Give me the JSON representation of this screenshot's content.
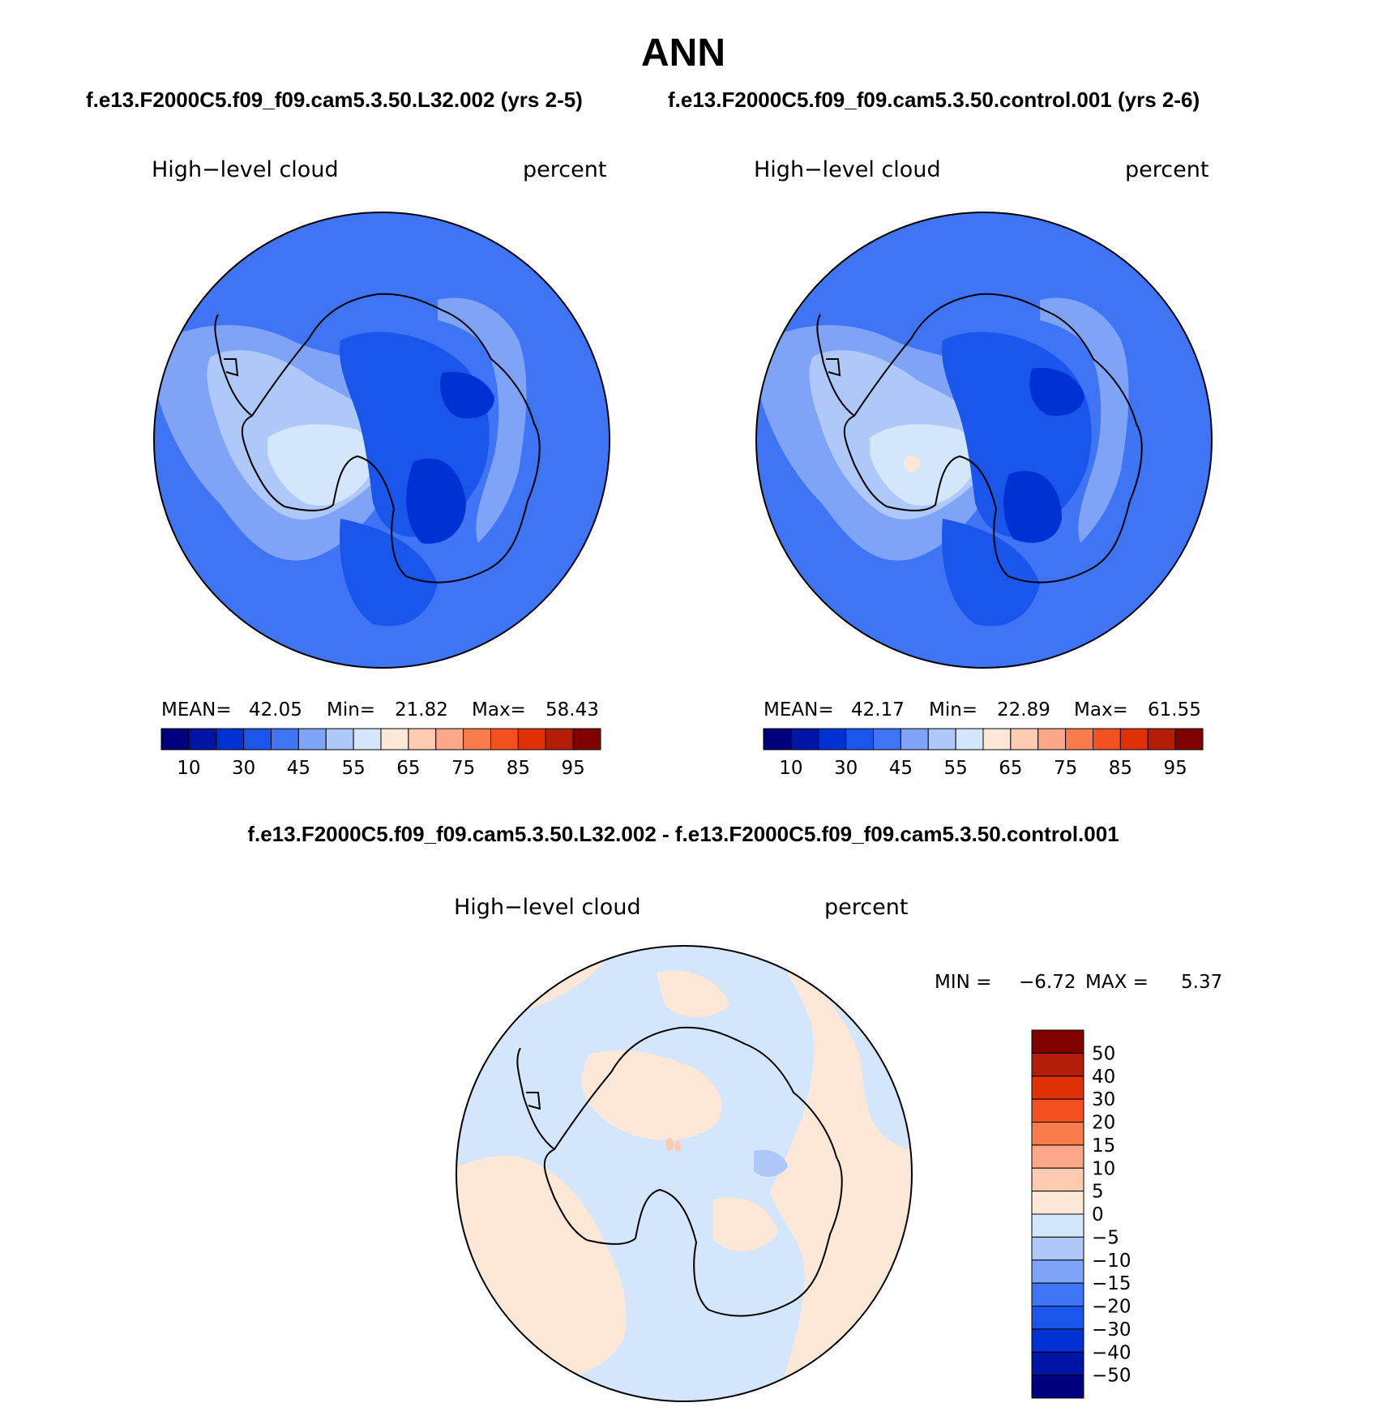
{
  "title": "ANN",
  "subtitle_left": "f.e13.F2000C5.f09_f09.cam5.3.50.L32.002 (yrs 2-5)",
  "subtitle_right": "f.e13.F2000C5.f09_f09.cam5.3.50.control.001 (yrs 2-6)",
  "diff_title": "f.e13.F2000C5.f09_f09.cam5.3.50.L32.002 - f.e13.F2000C5.f09_f09.cam5.3.50.control.001",
  "chart_data": [
    {
      "type": "heatmap",
      "projection": "south polar stereographic",
      "variable": "High−level cloud",
      "units": "percent",
      "stats": {
        "mean_label": "MEAN=",
        "mean": "42.05",
        "min_label": "Min=",
        "min": "21.82",
        "max_label": "Max=",
        "max": "58.43"
      },
      "colorbar": {
        "orientation": "horizontal",
        "levels": [
          10,
          20,
          30,
          40,
          45,
          50,
          55,
          60,
          65,
          70,
          75,
          80,
          85,
          90,
          95
        ],
        "tick_labels": [
          "10",
          "30",
          "45",
          "55",
          "65",
          "75",
          "85",
          "95"
        ],
        "colors": [
          "#00007f",
          "#0014a5",
          "#0032d3",
          "#1a55ec",
          "#3f75f5",
          "#7ea3f7",
          "#aec8f9",
          "#d4e6fb",
          "#fde8d8",
          "#fccbb1",
          "#fca789",
          "#fa7c4d",
          "#f5501f",
          "#e03006",
          "#b41d08",
          "#800000"
        ]
      }
    },
    {
      "type": "heatmap",
      "projection": "south polar stereographic",
      "variable": "High−level cloud",
      "units": "percent",
      "stats": {
        "mean_label": "MEAN=",
        "mean": "42.17",
        "min_label": "Min=",
        "min": "22.89",
        "max_label": "Max=",
        "max": "61.55"
      },
      "colorbar": {
        "orientation": "horizontal",
        "levels": [
          10,
          20,
          30,
          40,
          45,
          50,
          55,
          60,
          65,
          70,
          75,
          80,
          85,
          90,
          95
        ],
        "tick_labels": [
          "10",
          "30",
          "45",
          "55",
          "65",
          "75",
          "85",
          "95"
        ],
        "colors": [
          "#00007f",
          "#0014a5",
          "#0032d3",
          "#1a55ec",
          "#3f75f5",
          "#7ea3f7",
          "#aec8f9",
          "#d4e6fb",
          "#fde8d8",
          "#fccbb1",
          "#fca789",
          "#fa7c4d",
          "#f5501f",
          "#e03006",
          "#b41d08",
          "#800000"
        ]
      }
    },
    {
      "type": "heatmap",
      "projection": "south polar stereographic",
      "variable": "High−level cloud",
      "units": "percent",
      "stats": {
        "min_label": "MIN =",
        "min": "−6.72",
        "max_label": "MAX =",
        "max": "5.37"
      },
      "colorbar": {
        "orientation": "vertical",
        "tick_labels": [
          "50",
          "40",
          "30",
          "20",
          "15",
          "10",
          "5",
          "0",
          "−5",
          "−10",
          "−15",
          "−20",
          "−30",
          "−40",
          "−50"
        ],
        "colors": [
          "#800000",
          "#b41d08",
          "#e03006",
          "#f5501f",
          "#fa7c4d",
          "#fca789",
          "#fccbb1",
          "#fde8d8",
          "#d4e6fb",
          "#aec8f9",
          "#7ea3f7",
          "#3f75f5",
          "#1a55ec",
          "#0032d3",
          "#0014a5",
          "#00007f"
        ]
      }
    }
  ]
}
